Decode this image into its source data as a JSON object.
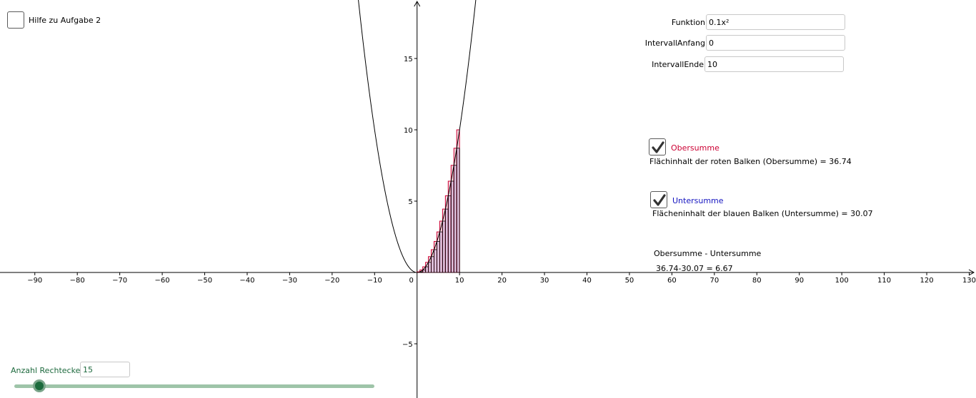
{
  "checkbox_help": {
    "label": "Hilfe zu Aufgabe 2",
    "checked": false
  },
  "inputs": {
    "funktion": {
      "label": "Funktion",
      "value": "0.1x²"
    },
    "intervall_anfang": {
      "label": "IntervallAnfang",
      "value": "0"
    },
    "intervall_ende": {
      "label": "IntervallEnde",
      "value": "10"
    }
  },
  "obersumme": {
    "label": "Obersumme",
    "checked": true,
    "area_text": "Flächinhalt der roten Balken (Obersumme) = 36.74",
    "color": "#cc0033"
  },
  "untersumme": {
    "label": "Untersumme",
    "checked": true,
    "area_text": "Flächeninhalt der blauen Balken (Untersumme) = 30.07",
    "color": "#1515c0"
  },
  "difference": {
    "label": "Obersumme - Untersumme",
    "value_text": "36.74-30.07 = 6.67"
  },
  "slider": {
    "label": "Anzahl Rechtecke",
    "value": "15",
    "fraction": 0.07,
    "color": "#1b6b3c"
  },
  "chart_data": {
    "type": "line",
    "function": "0.1x^2",
    "interval": [
      0,
      10
    ],
    "rectangles": 15,
    "x_ticks": [
      -90,
      -80,
      -70,
      -60,
      -50,
      -40,
      -30,
      -20,
      -10,
      0,
      10,
      20,
      30,
      40,
      50,
      60,
      70,
      80,
      90,
      100,
      110,
      120,
      130
    ],
    "y_ticks": [
      -5,
      5,
      10,
      15
    ],
    "xlim": [
      -98.2,
      131.6
    ],
    "ylim": [
      -8.8,
      19.1
    ],
    "grid": false,
    "series": [
      {
        "kind": "function",
        "color": "#000000"
      },
      {
        "kind": "upper-sum-bars",
        "color": "#cc0033"
      },
      {
        "kind": "lower-sum-bars",
        "color": "#1515c0"
      }
    ]
  }
}
